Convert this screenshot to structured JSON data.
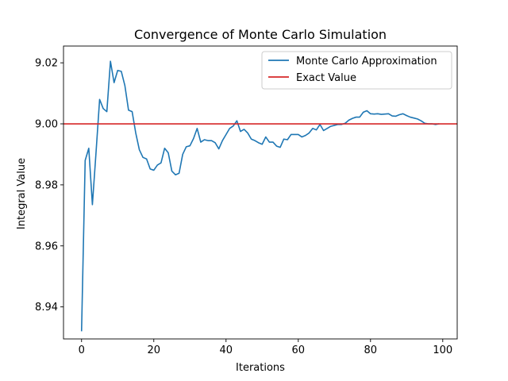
{
  "chart_data": {
    "type": "line",
    "title": "Convergence of Monte Carlo Simulation",
    "xlabel": "Iterations",
    "ylabel": "Integral Value",
    "xlim": [
      -5,
      104
    ],
    "ylim": [
      8.9295,
      9.0255
    ],
    "xticks": [
      0,
      20,
      40,
      60,
      80,
      100
    ],
    "yticks": [
      8.94,
      8.96,
      8.98,
      9.0,
      9.02
    ],
    "ytick_labels": [
      "8.94",
      "8.96",
      "8.98",
      "9.00",
      "9.02"
    ],
    "legend_position": "upper right",
    "grid": false,
    "series": [
      {
        "name": "Monte Carlo Approximation",
        "color": "#1f77b4",
        "x": [
          0,
          1,
          2,
          3,
          4,
          5,
          6,
          7,
          8,
          9,
          10,
          11,
          12,
          13,
          14,
          15,
          16,
          17,
          18,
          19,
          20,
          21,
          22,
          23,
          24,
          25,
          26,
          27,
          28,
          29,
          30,
          31,
          32,
          33,
          34,
          35,
          36,
          37,
          38,
          39,
          40,
          41,
          42,
          43,
          44,
          45,
          46,
          47,
          48,
          49,
          50,
          51,
          52,
          53,
          54,
          55,
          56,
          57,
          58,
          59,
          60,
          61,
          62,
          63,
          64,
          65,
          66,
          67,
          68,
          69,
          70,
          71,
          72,
          73,
          74,
          75,
          76,
          77,
          78,
          79,
          80,
          81,
          82,
          83,
          84,
          85,
          86,
          87,
          88,
          89,
          90,
          91,
          92,
          93,
          94,
          95,
          96,
          97,
          98,
          99
        ],
        "values": [
          8.932,
          8.988,
          8.992,
          8.9735,
          8.9905,
          9.008,
          9.005,
          9.004,
          9.0205,
          9.0135,
          9.0175,
          9.0172,
          9.0125,
          9.0045,
          9.004,
          8.997,
          8.9915,
          8.989,
          8.9885,
          8.9852,
          8.9848,
          8.9865,
          8.9872,
          8.992,
          8.9905,
          8.9845,
          8.9833,
          8.9838,
          8.99,
          8.9925,
          8.9928,
          8.9952,
          8.9985,
          8.994,
          8.9948,
          8.9945,
          8.9945,
          8.9938,
          8.9918,
          8.9945,
          8.9965,
          8.9985,
          8.9993,
          9.001,
          8.9975,
          8.9982,
          8.997,
          8.995,
          8.9945,
          8.9938,
          8.9933,
          8.9957,
          8.994,
          8.994,
          8.9927,
          8.9923,
          8.995,
          8.9948,
          8.9965,
          8.9965,
          8.9965,
          8.9957,
          8.9962,
          8.997,
          8.9985,
          8.998,
          8.9998,
          8.9978,
          8.9985,
          8.9992,
          8.9995,
          8.9998,
          8.9998,
          9.0002,
          9.0012,
          9.0018,
          9.0022,
          9.0022,
          9.0038,
          9.0043,
          9.0033,
          9.0032,
          9.0033,
          9.0031,
          9.0032,
          9.0033,
          9.0026,
          9.0025,
          9.003,
          9.0033,
          9.0027,
          9.0022,
          9.0019,
          9.0016,
          9.001,
          9.0002,
          9.0,
          9.0,
          8.9998,
          9.0
        ]
      },
      {
        "name": "Exact Value",
        "color": "#d62728",
        "hline": 9.0
      }
    ]
  }
}
